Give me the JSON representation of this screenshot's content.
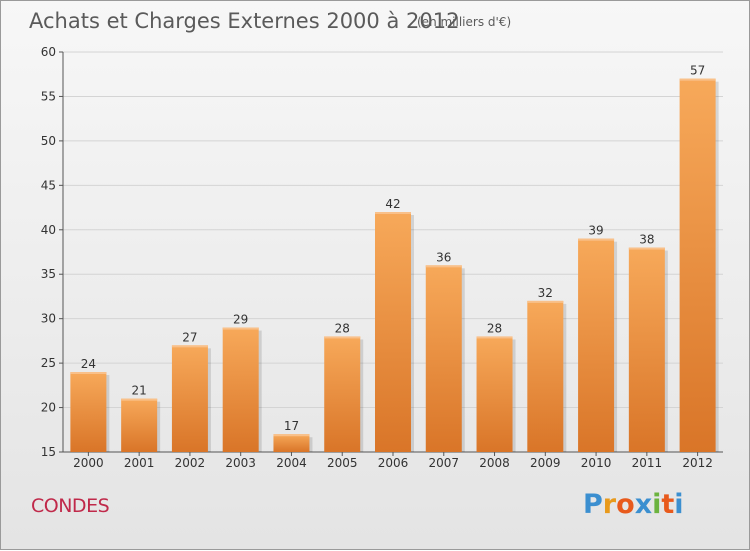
{
  "chart_data": {
    "type": "bar",
    "title": "Achats et Charges Externes 2000 à 2012",
    "subtitle": "(en milliers d'€)",
    "categories": [
      "2000",
      "2001",
      "2002",
      "2003",
      "2004",
      "2005",
      "2006",
      "2007",
      "2008",
      "2009",
      "2010",
      "2011",
      "2012"
    ],
    "values": [
      24,
      21,
      27,
      29,
      17,
      28,
      42,
      36,
      28,
      32,
      39,
      38,
      57
    ],
    "ylim": [
      15,
      60
    ],
    "yticks": [
      15,
      20,
      25,
      30,
      35,
      40,
      45,
      50,
      55,
      60
    ],
    "grid": true,
    "bar_color_top": "#f7a95a",
    "bar_color_bottom": "#d97528"
  },
  "footer": {
    "commune": "CONDES",
    "logo_letters": [
      "P",
      "r",
      "o",
      "x",
      "i",
      "t",
      "i"
    ],
    "logo_colors": [
      "#3b8fd0",
      "#e89a1c",
      "#e85a1c",
      "#3b8fd0",
      "#6cb33f",
      "#e85a1c",
      "#3b8fd0"
    ]
  }
}
